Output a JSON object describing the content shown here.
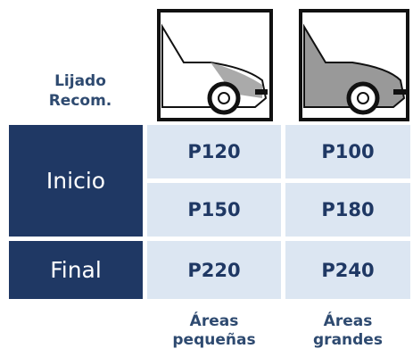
{
  "header": {
    "label": [
      "Lijado",
      "Recom."
    ]
  },
  "table": {
    "groups": [
      {
        "label": "Inicio",
        "rows": [
          [
            "P120",
            "P100"
          ],
          [
            "P150",
            "P180"
          ]
        ]
      },
      {
        "label": "Final",
        "rows": [
          [
            "P220",
            "P240"
          ]
        ]
      }
    ]
  },
  "footer": [
    [
      "Áreas",
      "pequeñas"
    ],
    [
      "Áreas",
      "grandes"
    ]
  ]
}
